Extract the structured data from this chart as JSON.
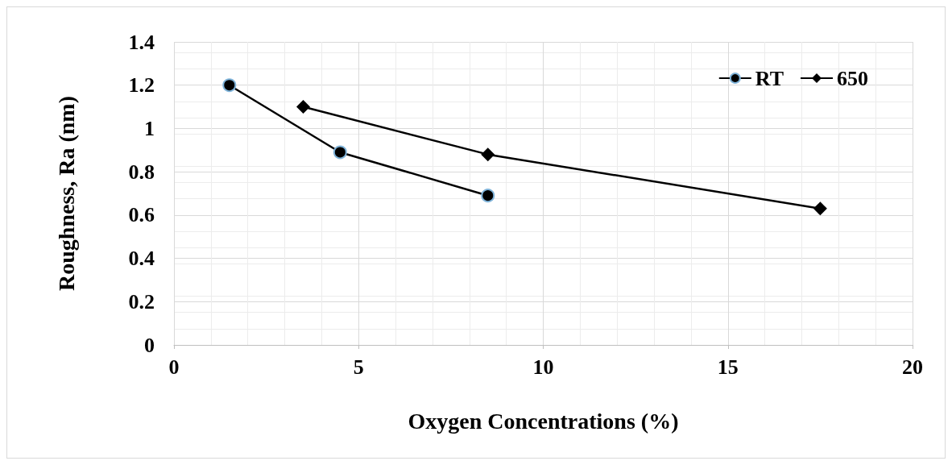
{
  "chart_data": {
    "type": "line",
    "xlabel": "Oxygen Concentrations (%)",
    "ylabel": "Roughness, Ra (nm)",
    "series": [
      {
        "name": "RT",
        "color": "#000000",
        "marker": "circle",
        "x": [
          1.5,
          4.5,
          8.5
        ],
        "values": [
          1.2,
          0.89,
          0.69
        ]
      },
      {
        "name": "650",
        "color": "#000000",
        "marker": "diamond",
        "x": [
          3.5,
          8.5,
          17.5
        ],
        "values": [
          1.1,
          0.88,
          0.63
        ]
      }
    ],
    "xlim": [
      0,
      20
    ],
    "xticks": [
      0,
      5,
      10,
      15,
      20
    ],
    "ylim": [
      0,
      1.4
    ],
    "yticks": [
      0,
      0.2,
      0.4,
      0.6,
      0.8,
      1,
      1.2,
      1.4
    ],
    "grid": true,
    "legend": "top right",
    "line_style": "solid"
  }
}
